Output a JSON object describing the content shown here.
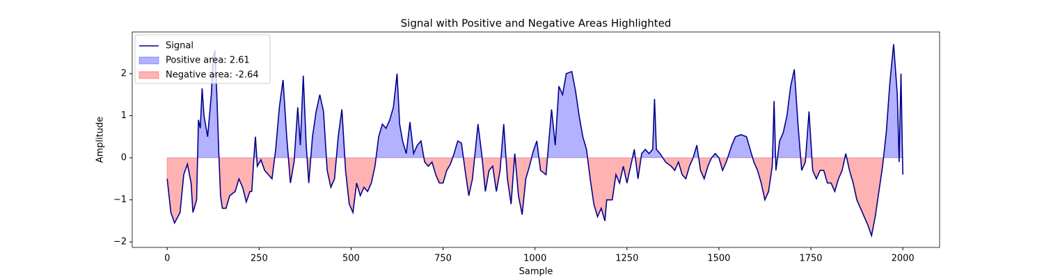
{
  "chart_data": {
    "type": "line",
    "title": "Signal with Positive and Negative Areas Highlighted",
    "x_label": "Sample",
    "y_label": "Amplitude",
    "x": [
      0,
      10,
      20,
      35,
      45,
      55,
      65,
      70,
      80,
      85,
      90,
      95,
      100,
      110,
      120,
      125,
      130,
      135,
      140,
      145,
      150,
      160,
      170,
      185,
      195,
      205,
      215,
      225,
      230,
      238,
      240,
      245,
      255,
      265,
      275,
      285,
      295,
      305,
      315,
      325,
      335,
      345,
      355,
      362,
      370,
      378,
      385,
      395,
      405,
      415,
      425,
      435,
      445,
      455,
      465,
      475,
      485,
      495,
      505,
      515,
      525,
      535,
      545,
      555,
      565,
      575,
      585,
      595,
      605,
      615,
      625,
      632,
      640,
      650,
      660,
      670,
      680,
      690,
      700,
      710,
      720,
      730,
      740,
      750,
      760,
      770,
      780,
      790,
      800,
      810,
      820,
      830,
      845,
      855,
      865,
      875,
      885,
      895,
      905,
      915,
      925,
      935,
      945,
      955,
      965,
      975,
      985,
      995,
      1005,
      1015,
      1030,
      1045,
      1055,
      1065,
      1075,
      1085,
      1100,
      1110,
      1120,
      1130,
      1140,
      1150,
      1160,
      1170,
      1180,
      1190,
      1195,
      1210,
      1220,
      1230,
      1240,
      1250,
      1260,
      1270,
      1280,
      1290,
      1300,
      1310,
      1320,
      1325,
      1330,
      1340,
      1355,
      1370,
      1380,
      1390,
      1400,
      1410,
      1420,
      1430,
      1440,
      1450,
      1460,
      1470,
      1480,
      1490,
      1500,
      1510,
      1520,
      1535,
      1545,
      1560,
      1575,
      1585,
      1595,
      1605,
      1615,
      1625,
      1635,
      1645,
      1650,
      1655,
      1665,
      1675,
      1685,
      1695,
      1705,
      1715,
      1725,
      1735,
      1745,
      1755,
      1765,
      1775,
      1785,
      1795,
      1805,
      1815,
      1825,
      1835,
      1845,
      1855,
      1865,
      1875,
      1885,
      1895,
      1905,
      1915,
      1925,
      1935,
      1945,
      1955,
      1965,
      1975,
      1985,
      1990,
      1995,
      2000
    ],
    "series": [
      {
        "name": "Signal",
        "color": "#00008b",
        "values": [
          -0.5,
          -1.3,
          -1.55,
          -1.3,
          -0.4,
          -0.15,
          -0.6,
          -1.3,
          -1.0,
          0.9,
          0.7,
          1.65,
          1.0,
          0.5,
          1.5,
          2.4,
          2.55,
          1.5,
          0.2,
          -0.9,
          -1.2,
          -1.2,
          -0.9,
          -0.8,
          -0.5,
          -0.7,
          -1.05,
          -0.8,
          -0.8,
          0.3,
          0.5,
          -0.2,
          -0.05,
          -0.3,
          -0.4,
          -0.5,
          0.2,
          1.2,
          1.85,
          0.5,
          -0.6,
          -0.1,
          1.2,
          0.3,
          1.95,
          0.3,
          -0.6,
          0.5,
          1.1,
          1.5,
          1.1,
          -0.3,
          -0.7,
          -0.5,
          0.5,
          1.15,
          -0.3,
          -1.1,
          -1.3,
          -0.6,
          -0.9,
          -0.7,
          -0.8,
          -0.6,
          -0.2,
          0.5,
          0.8,
          0.7,
          0.9,
          1.2,
          2.0,
          0.8,
          0.4,
          0.1,
          0.85,
          0.1,
          0.3,
          0.4,
          -0.1,
          -0.2,
          -0.1,
          -0.4,
          -0.6,
          -0.6,
          -0.3,
          -0.15,
          0.1,
          0.4,
          0.35,
          -0.3,
          -0.9,
          -0.5,
          0.8,
          0.1,
          -0.8,
          -0.3,
          -0.2,
          -0.8,
          -0.3,
          0.8,
          -0.5,
          -1.1,
          0.1,
          -0.9,
          -1.35,
          -0.5,
          -0.2,
          0.15,
          0.4,
          -0.3,
          -0.4,
          1.15,
          0.3,
          1.7,
          1.5,
          2.0,
          2.05,
          1.6,
          1.0,
          0.5,
          0.2,
          -0.5,
          -1.1,
          -1.4,
          -1.2,
          -1.5,
          -1.0,
          -1.0,
          -0.4,
          -0.6,
          -0.2,
          -0.6,
          -0.2,
          0.2,
          -0.5,
          0.1,
          0.2,
          0.1,
          0.2,
          1.4,
          0.2,
          0.1,
          -0.1,
          -0.2,
          -0.3,
          -0.1,
          -0.4,
          -0.5,
          -0.2,
          0.0,
          0.3,
          -0.3,
          -0.5,
          -0.2,
          0.0,
          0.1,
          0.0,
          -0.3,
          -0.1,
          0.3,
          0.5,
          0.55,
          0.5,
          0.2,
          -0.1,
          -0.3,
          -0.6,
          -1.0,
          -0.8,
          -0.2,
          1.35,
          -0.3,
          0.4,
          0.6,
          1.0,
          1.7,
          2.1,
          0.8,
          -0.3,
          -0.1,
          1.1,
          -0.3,
          -0.5,
          -0.3,
          -0.3,
          -0.6,
          -0.6,
          -0.8,
          -0.5,
          -0.3,
          0.1,
          -0.3,
          -0.6,
          -1.0,
          -1.2,
          -1.4,
          -1.6,
          -1.85,
          -1.4,
          -0.8,
          -0.2,
          0.6,
          1.8,
          2.7,
          1.5,
          -0.1,
          2.0,
          -0.4
        ]
      }
    ],
    "fills": [
      {
        "name": "Positive area: 2.61",
        "color": "#0000ff"
      },
      {
        "name": "Negative area: -2.64",
        "color": "#ff0000"
      }
    ],
    "xlim": [
      -95,
      2100
    ],
    "ylim": [
      -2.13,
      2.99
    ],
    "xticks": [
      0,
      250,
      500,
      750,
      1000,
      1250,
      1500,
      1750,
      2000
    ],
    "yticks": [
      {
        "value": -2,
        "label": "−2"
      },
      {
        "value": -1,
        "label": "−1"
      },
      0,
      1,
      2
    ],
    "legend": "upper-left"
  }
}
